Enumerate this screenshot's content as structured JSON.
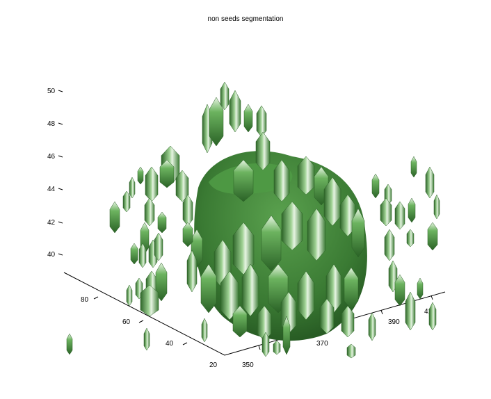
{
  "title": "non seeds segmentation",
  "z_axis": {
    "ticks": [
      "50",
      "48",
      "46",
      "44",
      "42",
      "40"
    ]
  },
  "y_axis": {
    "ticks": [
      "80",
      "60",
      "40",
      "20"
    ]
  },
  "x_axis": {
    "ticks": [
      "350",
      "370",
      "390",
      "410"
    ]
  },
  "colors": {
    "surface": "#4f9a45",
    "surface_dark": "#2f6a2a",
    "surface_light": "#cfe8c8",
    "background": "#ffffff"
  }
}
